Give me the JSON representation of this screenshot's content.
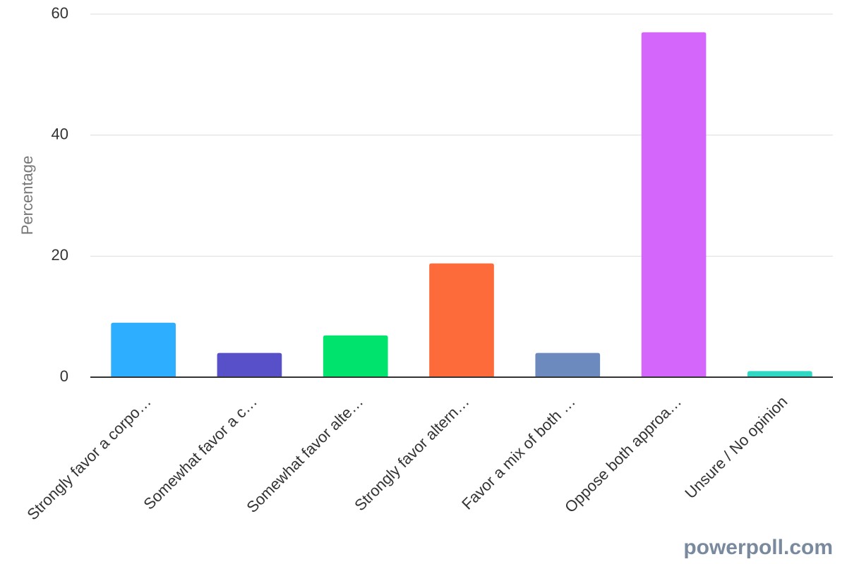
{
  "chart_data": {
    "type": "bar",
    "y_label": "Percentage",
    "categories": [
      "Strongly favor a corpo…",
      "Somewhat favor a c…",
      "Somewhat favor alte…",
      "Strongly favor altern…",
      "Favor a mix of both …",
      "Oppose both approa…",
      "Unsure / No opinion"
    ],
    "values": [
      9,
      4,
      6.9,
      18.8,
      4,
      57,
      1
    ],
    "colors": [
      "#2eaefe",
      "#5750c8",
      "#00e46e",
      "#fe6b3a",
      "#6c8abd",
      "#d466fb",
      "#2ed8c3"
    ],
    "ylim": [
      0,
      60
    ],
    "yticks": [
      0,
      20,
      40,
      60
    ],
    "grid": true
  },
  "watermark": "powerpoll.com"
}
